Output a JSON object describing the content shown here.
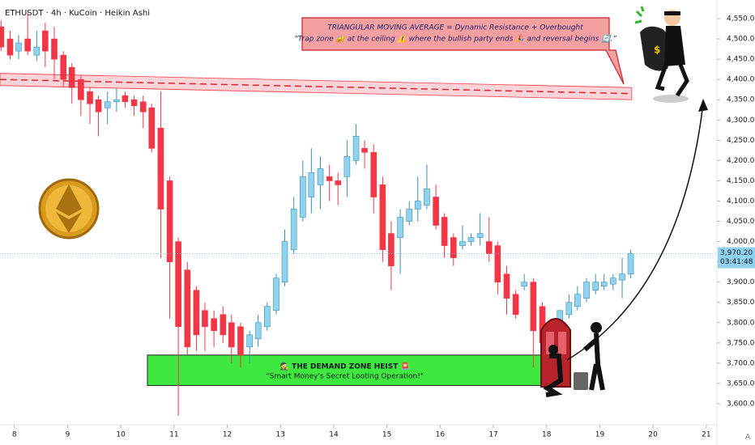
{
  "chart_data": {
    "type": "candlestick",
    "title": "ETHUSDT · 4h · KuCoin · Heikin Ashi",
    "x": [
      7.75,
      7.92,
      8.08,
      8.25,
      8.42,
      8.58,
      8.75,
      8.92,
      9.08,
      9.25,
      9.42,
      9.58,
      9.75,
      9.92,
      10.08,
      10.25,
      10.42,
      10.58,
      10.75,
      10.92,
      11.08,
      11.25,
      11.42,
      11.58,
      11.75,
      11.92,
      12.08,
      12.25,
      12.42,
      12.58,
      12.75,
      12.92,
      13.08,
      13.25,
      13.42,
      13.58,
      13.75,
      13.92,
      14.08,
      14.25,
      14.42,
      14.58,
      14.75,
      14.92,
      15.08,
      15.25,
      15.42,
      15.58,
      15.75,
      15.92,
      16.08,
      16.25,
      16.42,
      16.58,
      16.75,
      16.92,
      17.08,
      17.25,
      17.42,
      17.58,
      17.75,
      17.92,
      18.08,
      18.25,
      18.42,
      18.58,
      18.75,
      18.92,
      19.08,
      19.25,
      19.42,
      19.58
    ],
    "open": [
      4530,
      4500,
      4470,
      4500,
      4460,
      4520,
      4500,
      4460,
      4430,
      4400,
      4370,
      4350,
      4330,
      4345,
      4360,
      4350,
      4345,
      4330,
      4280,
      4150,
      4000,
      3930,
      3880,
      3830,
      3810,
      3820,
      3800,
      3790,
      3740,
      3760,
      3790,
      3830,
      3900,
      3980,
      4060,
      4110,
      4140,
      4160,
      4150,
      4160,
      4200,
      4230,
      4220,
      4140,
      4020,
      4010,
      4050,
      4080,
      4090,
      4110,
      4060,
      4010,
      3990,
      4000,
      4010,
      4000,
      3990,
      3920,
      3870,
      3890,
      3900,
      3840,
      3800,
      3800,
      3820,
      3840,
      3860,
      3880,
      3890,
      3895,
      3905,
      3920
    ],
    "high": [
      4545,
      4520,
      4510,
      4565,
      4520,
      4540,
      4530,
      4470,
      4440,
      4410,
      4380,
      4360,
      4370,
      4380,
      4370,
      4360,
      4360,
      4340,
      4370,
      4160,
      4010,
      3950,
      3890,
      3850,
      3830,
      3840,
      3820,
      3800,
      3780,
      3820,
      3850,
      3920,
      4030,
      4110,
      4200,
      4230,
      4210,
      4190,
      4170,
      4250,
      4290,
      4250,
      4240,
      4160,
      4050,
      4080,
      4100,
      4160,
      4190,
      4140,
      4070,
      4020,
      4040,
      4020,
      4070,
      4060,
      4000,
      3940,
      3880,
      3920,
      3910,
      3850,
      3810,
      3830,
      3870,
      3890,
      3910,
      3920,
      3920,
      3920,
      3960,
      3980
    ],
    "low": [
      4470,
      4450,
      4450,
      4460,
      4445,
      4430,
      4400,
      4380,
      4340,
      4310,
      4290,
      4260,
      4290,
      4320,
      4330,
      4310,
      4280,
      4220,
      3960,
      3810,
      3570,
      3720,
      3730,
      3730,
      3740,
      3750,
      3700,
      3690,
      3700,
      3740,
      3780,
      3820,
      3890,
      3970,
      4050,
      4070,
      4080,
      4100,
      4090,
      4110,
      4190,
      4180,
      4070,
      3950,
      3880,
      3920,
      4040,
      4050,
      4080,
      4030,
      3960,
      3940,
      3980,
      3990,
      3990,
      3950,
      3870,
      3820,
      3810,
      3880,
      3690,
      3720,
      3750,
      3790,
      3810,
      3830,
      3850,
      3870,
      3880,
      3880,
      3860,
      3910
    ],
    "close": [
      4480,
      4460,
      4490,
      4470,
      4480,
      4470,
      4450,
      4400,
      4380,
      4350,
      4340,
      4320,
      4345,
      4350,
      4345,
      4335,
      4320,
      4230,
      4080,
      3950,
      3790,
      3740,
      3770,
      3790,
      3780,
      3770,
      3740,
      3720,
      3770,
      3800,
      3840,
      3910,
      4000,
      4080,
      4160,
      4170,
      4180,
      4150,
      4140,
      4210,
      4260,
      4220,
      4110,
      3980,
      3940,
      4060,
      4080,
      4100,
      4130,
      4040,
      3990,
      3960,
      4000,
      4010,
      4020,
      3970,
      3900,
      3860,
      3820,
      3900,
      3780,
      3750,
      3770,
      3830,
      3850,
      3870,
      3900,
      3900,
      3900,
      3910,
      3920,
      3970
    ],
    "up_color": "#8fd3ef",
    "down_color": "#f23645",
    "xlim": [
      7.73,
      21.2
    ],
    "xticks": [
      8,
      9,
      10,
      11,
      12,
      13,
      14,
      15,
      16,
      17,
      18,
      19,
      20,
      21
    ],
    "ylim": [
      3568,
      4596
    ],
    "yticks": [
      {
        "value": 3600,
        "label": "3,600.00"
      },
      {
        "value": 3650,
        "label": "3,650.00"
      },
      {
        "value": 3700,
        "label": "3,700.00"
      },
      {
        "value": 3750,
        "label": "3,750.00"
      },
      {
        "value": 3800,
        "label": "3,800.00"
      },
      {
        "value": 3850,
        "label": "3,850.00"
      },
      {
        "value": 3900,
        "label": "3,900.00"
      },
      {
        "value": 3950,
        "label": "3,950.00"
      },
      {
        "value": 4000,
        "label": "4,000.00"
      },
      {
        "value": 4050,
        "label": "4,050.00"
      },
      {
        "value": 4100,
        "label": "4,100.00"
      },
      {
        "value": 4150,
        "label": "4,150.00"
      },
      {
        "value": 4200,
        "label": "4,200.00"
      },
      {
        "value": 4250,
        "label": "4,250.00"
      },
      {
        "value": 4300,
        "label": "4,300.00"
      },
      {
        "value": 4350,
        "label": "4,350.00"
      },
      {
        "value": 4400,
        "label": "4,400.00"
      },
      {
        "value": 4450,
        "label": "4,450.00"
      },
      {
        "value": 4500,
        "label": "4,500.00"
      },
      {
        "value": 4550,
        "label": "4,550.00"
      }
    ],
    "last_price": {
      "value": 3970.2,
      "label": "3,970.20"
    },
    "countdown": "03:41:48",
    "tma_band": {
      "x": [
        7.73,
        19.6
      ],
      "upper": [
        4415,
        4380
      ],
      "lower": [
        4385,
        4350
      ],
      "mid": [
        4400,
        4365
      ]
    },
    "tma_note": {
      "title": "TRIANGULAR MOVING AVERAGE = Dynamic Resistance + Overbought",
      "text": "“Trap zone 🔐 at the ceiling ⚠️ where the bullish party ends 🎉 and reversal begins 🔄.”"
    },
    "demand_zone": {
      "title": "🕵️ THE DEMAND ZONE HEIST 🚨",
      "subtitle": "\"Smart Money's Secret Looting Operation!\"",
      "low": 3645,
      "high": 3720,
      "x": [
        10.5,
        17.92
      ]
    }
  }
}
